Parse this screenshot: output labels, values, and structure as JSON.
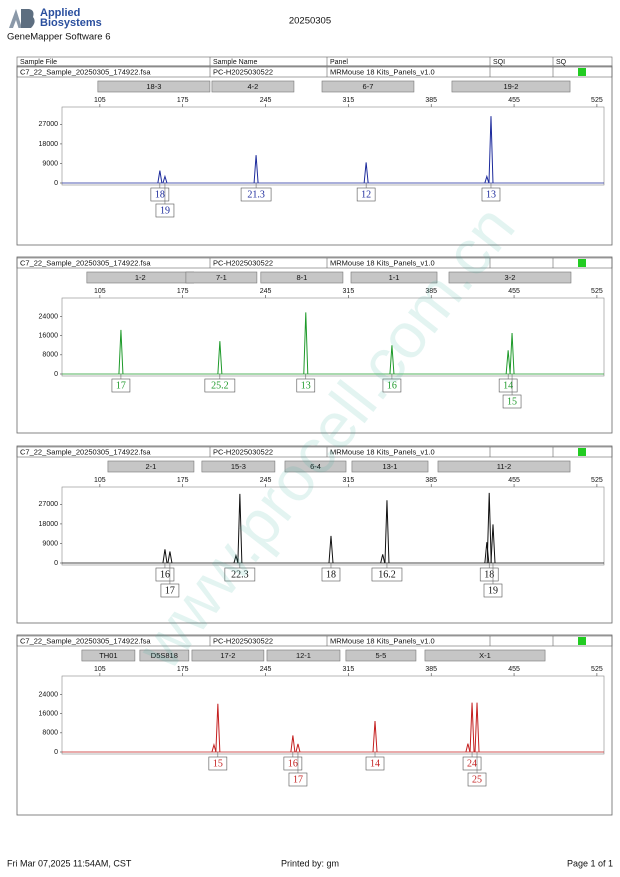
{
  "header": {
    "logo_lines": [
      "Applied",
      "Biosystems"
    ],
    "software": "GeneMapper Software 6",
    "date": "20250305"
  },
  "columns": [
    "Sample File",
    "Sample Name",
    "Panel",
    "SQI",
    "SQ"
  ],
  "chart_data": [
    {
      "type": "electropherogram",
      "sample_file": "C7_22_Sample_20250305_174922.fsa",
      "sample_name": "PC-H2025030522",
      "panel": "MRMouse 18 Kits_Panels_v1.0",
      "color": "#1c2a9c",
      "xlim": [
        73,
        531
      ],
      "xticks": [
        105,
        175,
        245,
        315,
        385,
        455,
        525
      ],
      "ylim": [
        0,
        35000
      ],
      "yticks": [
        0,
        9000,
        18000,
        27000
      ],
      "markers": {
        "names": [
          "18-3",
          "4-2",
          "6-7",
          "19-2"
        ],
        "start": [
          103.3,
          199.7,
          292.7,
          402.5
        ],
        "end": [
          198,
          269,
          370.4,
          502.3
        ]
      },
      "peaks": {
        "x": [
          155.7,
          160,
          237,
          330,
          432,
          435.5
        ],
        "values": [
          5700,
          3000,
          12800,
          9500,
          3000,
          30800
        ],
        "labels": [
          "18",
          "19",
          "21.3",
          "12",
          null,
          "13"
        ]
      }
    },
    {
      "type": "electropherogram",
      "sample_file": "C7_22_Sample_20250305_174922.fsa",
      "sample_name": "PC-H2025030522",
      "panel": "MRMouse 18 Kits_Panels_v1.0",
      "color": "#1e9a2a",
      "xlim": [
        73,
        531
      ],
      "xticks": [
        105,
        175,
        245,
        315,
        385,
        455,
        525
      ],
      "ylim": [
        0,
        31700
      ],
      "yticks": [
        0,
        8000,
        16000,
        24000
      ],
      "markers": {
        "names": [
          "1-2",
          "7-1",
          "8-1",
          "1-1",
          "3-2"
        ],
        "start": [
          94,
          177.7,
          241,
          317.2,
          400
        ],
        "end": [
          184.3,
          237.7,
          310.4,
          389.9,
          503.1
        ]
      },
      "peaks": {
        "x": [
          122.8,
          206.4,
          279,
          351.8,
          450,
          453.3
        ],
        "values": [
          18400,
          13700,
          25700,
          12000,
          9900,
          17100
        ],
        "labels": [
          "17",
          "25.2",
          "13",
          "16",
          "14",
          "15"
        ]
      }
    },
    {
      "type": "electropherogram",
      "sample_file": "C7_22_Sample_20250305_174922.fsa",
      "sample_name": "PC-H2025030522",
      "panel": "MRMouse 18 Kits_Panels_v1.0",
      "color": "#111111",
      "xlim": [
        73,
        531
      ],
      "xticks": [
        105,
        175,
        245,
        315,
        385,
        455,
        525
      ],
      "ylim": [
        0,
        35000
      ],
      "yticks": [
        0,
        9000,
        18000,
        27000
      ],
      "markers": {
        "names": [
          "2-1",
          "15-3",
          "6-4",
          "13-1",
          "11-2"
        ],
        "start": [
          111.8,
          191.2,
          261.4,
          318,
          390.7
        ],
        "end": [
          184.5,
          252.9,
          313,
          382.3,
          502.3
        ]
      },
      "peaks": {
        "x": [
          160,
          164.2,
          220,
          223.3,
          300.3,
          344,
          347.6,
          432,
          434,
          437.2
        ],
        "values": [
          6300,
          5300,
          3400,
          31800,
          12500,
          4000,
          28900,
          9600,
          32300,
          17800
        ],
        "labels": [
          "16",
          "17",
          null,
          "22.3",
          "18",
          null,
          "16.2",
          null,
          "18",
          "19"
        ]
      }
    },
    {
      "type": "electropherogram",
      "sample_file": "C7_22_Sample_20250305_174922.fsa",
      "sample_name": "PC-H2025030522",
      "panel": "MRMouse 18 Kits_Panels_v1.0",
      "color": "#c41f1f",
      "xlim": [
        73,
        531
      ],
      "xticks": [
        105,
        175,
        245,
        315,
        385,
        455,
        525
      ],
      "ylim": [
        0,
        31700
      ],
      "yticks": [
        0,
        8000,
        16000,
        24000
      ],
      "markers": {
        "names": [
          "TH01",
          "D5S818",
          "17-2",
          "12-1",
          "5-5",
          "X-1"
        ],
        "start": [
          89.8,
          138.8,
          182.8,
          246.2,
          312.9,
          379.7
        ],
        "end": [
          134.6,
          180.2,
          243.6,
          307.9,
          372.1,
          481.2
        ]
      },
      "peaks": {
        "x": [
          201.4,
          204.7,
          268.1,
          272.4,
          337.5,
          416,
          419.5,
          423.7
        ],
        "values": [
          3000,
          20100,
          6900,
          3400,
          12900,
          3500,
          20600,
          20600
        ],
        "labels": [
          null,
          "15",
          "16",
          "17",
          "14",
          null,
          "24",
          "25"
        ]
      }
    }
  ],
  "footer": {
    "printed_at": "Fri Mar 07,2025 11:54AM, CST",
    "printed_by": "Printed by: gm",
    "page": "Page 1 of 1"
  },
  "watermark": "www.procell.com.cn"
}
